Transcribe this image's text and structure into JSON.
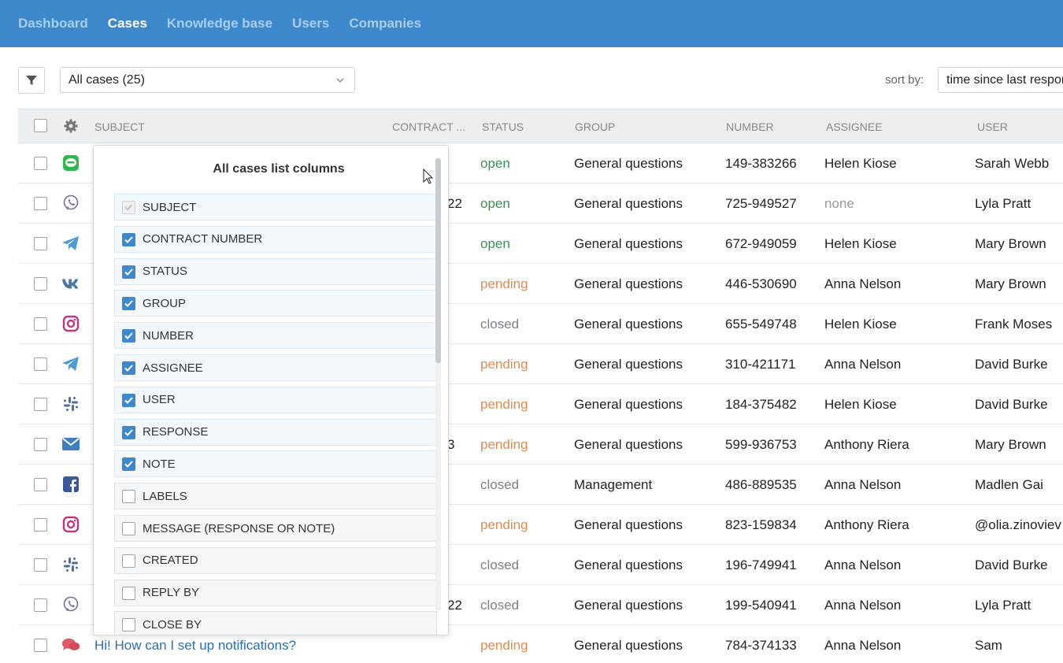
{
  "nav": {
    "items": [
      {
        "label": "Dashboard",
        "active": false
      },
      {
        "label": "Cases",
        "active": true
      },
      {
        "label": "Knowledge base",
        "active": false
      },
      {
        "label": "Users",
        "active": false
      },
      {
        "label": "Companies",
        "active": false
      }
    ]
  },
  "toolbar": {
    "case_filter": "All cases (25)",
    "sort_label": "sort by:",
    "sort_value": "time since last response"
  },
  "table": {
    "headers": [
      "SUBJECT",
      "CONTRACT ...",
      "STATUS",
      "GROUP",
      "NUMBER",
      "ASSIGNEE",
      "USER"
    ],
    "rows": [
      {
        "channel": "line-icon",
        "contract": "",
        "status": "open",
        "status_class": "open",
        "group": "General questions",
        "number": "149-383266",
        "assignee": "Helen Kiose",
        "user": "Sarah Webb"
      },
      {
        "channel": "viber-icon",
        "contract": "22",
        "status": "open",
        "status_class": "open",
        "group": "General questions",
        "number": "725-949527",
        "assignee": "none",
        "user": "Lyla Pratt"
      },
      {
        "channel": "telegram-icon",
        "contract": "",
        "status": "open",
        "status_class": "open",
        "group": "General questions",
        "number": "672-949059",
        "assignee": "Helen Kiose",
        "user": "Mary Brown"
      },
      {
        "channel": "vk-icon",
        "contract": "",
        "status": "pending",
        "status_class": "pending",
        "group": "General questions",
        "number": "446-530690",
        "assignee": "Anna Nelson",
        "user": "Mary Brown"
      },
      {
        "channel": "instagram-icon",
        "contract": "",
        "status": "closed",
        "status_class": "closed",
        "group": "General questions",
        "number": "655-549748",
        "assignee": "Helen Kiose",
        "user": "Frank Moses"
      },
      {
        "channel": "telegram-icon",
        "contract": "",
        "status": "pending",
        "status_class": "pending",
        "group": "General questions",
        "number": "310-421171",
        "assignee": "Anna Nelson",
        "user": "David Burke"
      },
      {
        "channel": "slack-icon",
        "contract": "",
        "status": "pending",
        "status_class": "pending",
        "group": "General questions",
        "number": "184-375482",
        "assignee": "Helen Kiose",
        "user": "David Burke"
      },
      {
        "channel": "email-icon",
        "contract": "3",
        "status": "pending",
        "status_class": "pending",
        "group": "General questions",
        "number": "599-936753",
        "assignee": "Anthony Riera",
        "user": "Mary Brown"
      },
      {
        "channel": "facebook-icon",
        "contract": "",
        "status": "closed",
        "status_class": "closed",
        "group": "Management",
        "number": "486-889535",
        "assignee": "Anna Nelson",
        "user": "Madlen Gai"
      },
      {
        "channel": "instagram-icon",
        "contract": "",
        "status": "pending",
        "status_class": "pending",
        "group": "General questions",
        "number": "823-159834",
        "assignee": "Anthony Riera",
        "user": "@olia.zinoviev"
      },
      {
        "channel": "slack-icon",
        "contract": "",
        "status": "closed",
        "status_class": "closed",
        "group": "General questions",
        "number": "196-749941",
        "assignee": "Anna Nelson",
        "user": "David Burke"
      },
      {
        "channel": "viber-icon",
        "contract": "22",
        "status": "closed",
        "status_class": "closed",
        "group": "General questions",
        "number": "199-540941",
        "assignee": "Anna Nelson",
        "user": "Lyla Pratt"
      },
      {
        "channel": "chat-icon",
        "contract": "",
        "subject": "Hi! How can I set up notifications?",
        "status": "pending",
        "status_class": "pending",
        "group": "General questions",
        "number": "784-374133",
        "assignee": "Anna Nelson",
        "user": "Sam"
      }
    ]
  },
  "columns_panel": {
    "title": "All cases list columns",
    "options": [
      {
        "label": "SUBJECT",
        "state": "disabled"
      },
      {
        "label": "CONTRACT NUMBER",
        "state": "on"
      },
      {
        "label": "STATUS",
        "state": "on"
      },
      {
        "label": "GROUP",
        "state": "on"
      },
      {
        "label": "NUMBER",
        "state": "on"
      },
      {
        "label": "ASSIGNEE",
        "state": "on"
      },
      {
        "label": "USER",
        "state": "on"
      },
      {
        "label": "RESPONSE",
        "state": "on"
      },
      {
        "label": "NOTE",
        "state": "on"
      },
      {
        "label": "LABELS",
        "state": "off"
      },
      {
        "label": "MESSAGE (RESPONSE OR NOTE)",
        "state": "off"
      },
      {
        "label": "CREATED",
        "state": "off"
      },
      {
        "label": "REPLY BY",
        "state": "off"
      },
      {
        "label": "CLOSE BY",
        "state": "off"
      }
    ]
  }
}
